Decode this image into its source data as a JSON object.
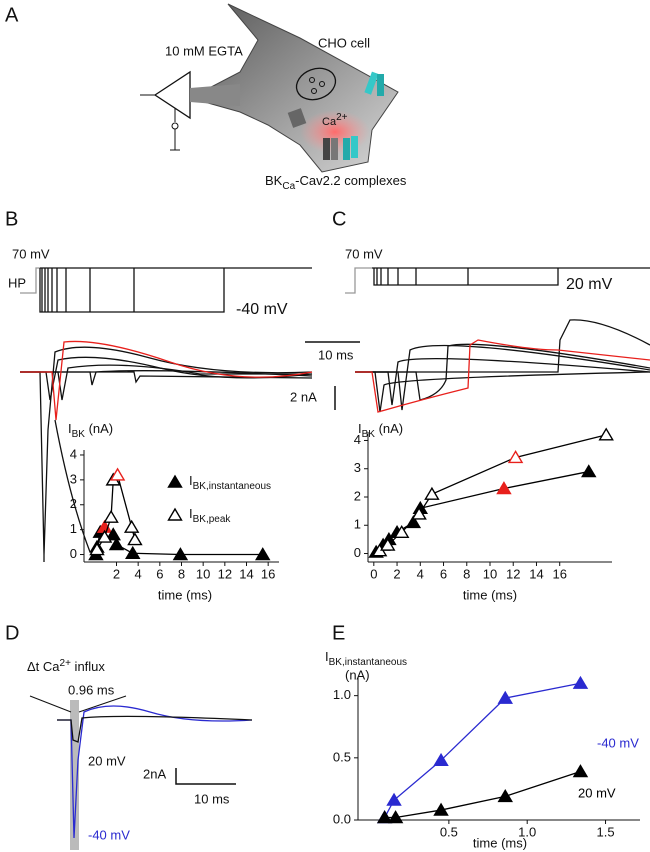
{
  "panel_labels": [
    "A",
    "B",
    "C",
    "D",
    "E"
  ],
  "diagram": {
    "egta": "10 mM EGTA",
    "cell": "CHO cell",
    "ion": {
      "base": "Ca",
      "sup": "2+"
    },
    "complexes": {
      "pre": "BK",
      "sub": "Ca",
      "post": "-Cav2.2 complexes"
    }
  },
  "traces": {
    "b": {
      "step": "70 mV",
      "hold": "-40 mV",
      "hp": "HP"
    },
    "c": {
      "step": "70 mV",
      "hold": "20 mV"
    },
    "scale_time": "10 ms",
    "scale_current": "2 nA"
  },
  "panel_d": {
    "annotation": {
      "pre": "Δt Ca",
      "sup": "2+",
      "post": " influx"
    },
    "interval": "0.96 ms",
    "trace_20": "20 mV",
    "trace_40": "-40 mV",
    "scale_current": "2nA",
    "scale_time": "10 ms"
  },
  "chart_data": [
    {
      "type": "scatter",
      "xlabel": "time (ms)",
      "ylabel": {
        "base": "I",
        "sub": "BK",
        "post": " (nA)"
      },
      "xlim": [
        -1,
        17
      ],
      "ylim": [
        -0.3,
        4.2
      ],
      "xticks": [
        2,
        4,
        6,
        8,
        10,
        12,
        14,
        16
      ],
      "yticks": [
        0,
        1,
        2,
        3,
        4
      ],
      "legend": "right",
      "series": [
        {
          "name": {
            "base": "I",
            "sub": "BK,instantaneous"
          },
          "marker": "filled",
          "color": "#000000",
          "x": [
            0.1,
            0.2,
            0.5,
            0.9,
            1.7,
            2.0,
            3.5,
            7.9,
            15.5
          ],
          "values": [
            0,
            0.3,
            0.9,
            1.1,
            0.8,
            0.4,
            0.05,
            0,
            0
          ],
          "colors": [
            "#000000",
            "#000000",
            "#000000",
            "#e8201c",
            "#000000",
            "#000000",
            "#000000",
            "#000000",
            "#000000"
          ]
        },
        {
          "name": {
            "base": "I",
            "sub": "BK,peak"
          },
          "marker": "open",
          "color": "#000000",
          "x": [
            0.2,
            0.9,
            1.5,
            1.7,
            2.1,
            3.4,
            3.7
          ],
          "values": [
            0.2,
            0.7,
            1.5,
            3.0,
            3.2,
            1.1,
            0.6
          ],
          "colors": [
            "#000000",
            "#000000",
            "#000000",
            "#000000",
            "#e8201c",
            "#000000",
            "#000000"
          ]
        }
      ]
    },
    {
      "type": "scatter",
      "xlabel": "time (ms)",
      "ylabel": {
        "base": "I",
        "sub": "BK",
        "post": " (nA)"
      },
      "xlim": [
        -0.5,
        20.5
      ],
      "ylim": [
        -0.3,
        4.3
      ],
      "xticks": [
        0,
        2,
        4,
        6,
        8,
        10,
        12,
        14,
        16
      ],
      "yticks": [
        0,
        1,
        2,
        3,
        4
      ],
      "series": [
        {
          "marker": "filled",
          "color": "#000000",
          "x": [
            0.2,
            0.8,
            1.3,
            2.0,
            3.4,
            4.0,
            11.2,
            18.5
          ],
          "values": [
            0.05,
            0.3,
            0.5,
            0.75,
            1.1,
            1.6,
            2.3,
            2.9
          ],
          "colors": [
            "#000000",
            "#000000",
            "#000000",
            "#000000",
            "#000000",
            "#000000",
            "#e8201c",
            "#000000"
          ]
        },
        {
          "marker": "open",
          "color": "#000000",
          "x": [
            0.5,
            1.2,
            2.4,
            3.9,
            5.0,
            12.2,
            20.0
          ],
          "values": [
            0.1,
            0.3,
            0.75,
            1.4,
            2.1,
            3.4,
            4.2
          ],
          "colors": [
            "#000000",
            "#000000",
            "#000000",
            "#000000",
            "#000000",
            "#e8201c",
            "#000000"
          ]
        }
      ]
    },
    {
      "type": "scatter",
      "xlabel": "time (ms)",
      "ylabel": {
        "base": "I",
        "sub": "BK,instantaneous"
      },
      "ylabel_unit": "(nA)",
      "xlim": [
        -0.08,
        1.72
      ],
      "ylim": [
        0,
        1.15
      ],
      "xticks": [
        0.5,
        {
          "value": 1,
          "label": "1.0"
        },
        1.5
      ],
      "yticks": [
        {
          "value": 0,
          "label": "0.0"
        },
        0.5,
        {
          "value": 1,
          "label": "1.0"
        }
      ],
      "series": [
        {
          "name": "-40 mV",
          "marker": "filled",
          "color": "#2a2ad0",
          "x": [
            0.09,
            0.15,
            0.45,
            0.86,
            1.34
          ],
          "values": [
            0.02,
            0.16,
            0.48,
            0.98,
            1.1
          ]
        },
        {
          "name": "20 mV",
          "marker": "filled",
          "color": "#000000",
          "x": [
            0.09,
            0.16,
            0.45,
            0.86,
            1.34
          ],
          "values": [
            0.02,
            0.02,
            0.08,
            0.19,
            0.39
          ]
        }
      ]
    }
  ]
}
